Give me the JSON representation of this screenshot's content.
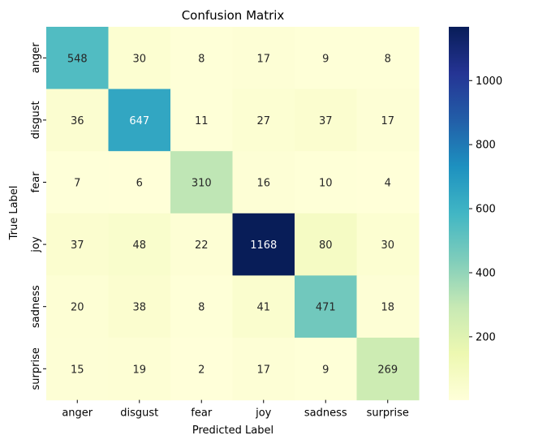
{
  "chart_data": {
    "type": "heatmap",
    "title": "Confusion Matrix",
    "xlabel": "Predicted Label",
    "ylabel": "True Label",
    "x_categories": [
      "anger",
      "disgust",
      "fear",
      "joy",
      "sadness",
      "surprise"
    ],
    "y_categories": [
      "anger",
      "disgust",
      "fear",
      "joy",
      "sadness",
      "surprise"
    ],
    "values": [
      [
        548,
        30,
        8,
        17,
        9,
        8
      ],
      [
        36,
        647,
        11,
        27,
        37,
        17
      ],
      [
        7,
        6,
        310,
        16,
        10,
        4
      ],
      [
        37,
        48,
        22,
        1168,
        80,
        30
      ],
      [
        20,
        38,
        8,
        41,
        471,
        18
      ],
      [
        15,
        19,
        2,
        17,
        9,
        269
      ]
    ],
    "colormap": "YlGnBu",
    "color_range": [
      2,
      1168
    ],
    "colorbar_ticks": [
      200,
      400,
      600,
      800,
      1000
    ],
    "grid": false
  }
}
